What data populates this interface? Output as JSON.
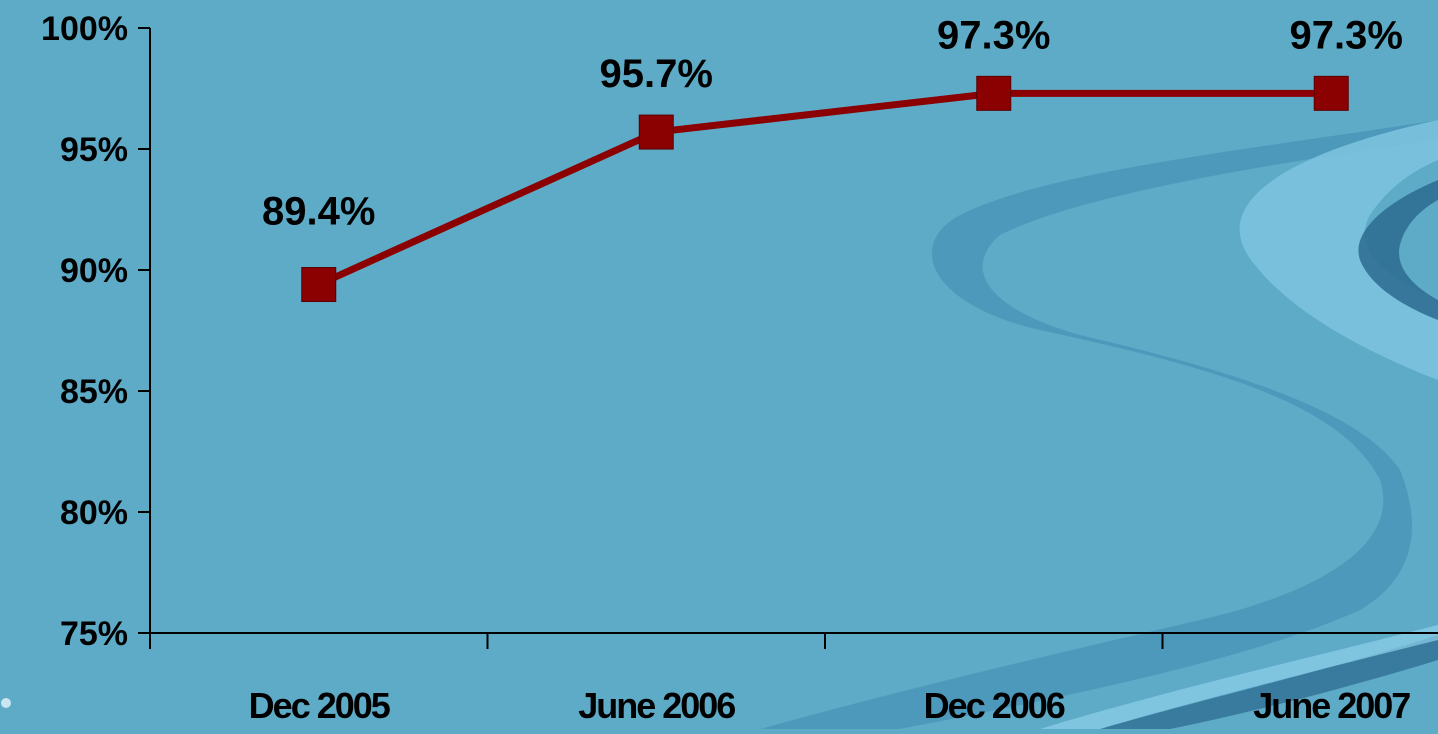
{
  "chart_data": {
    "type": "line",
    "categories": [
      "Dec 2005",
      "June 2006",
      "Dec 2006",
      "June 2007"
    ],
    "series": [
      {
        "values": [
          89.4,
          95.7,
          97.3,
          97.3
        ]
      }
    ],
    "data_labels": [
      "89.4%",
      "95.7%",
      "97.3%",
      "97.3%"
    ],
    "y_ticks": [
      "75%",
      "80%",
      "85%",
      "90%",
      "95%",
      "100%"
    ],
    "ylim": [
      75,
      100
    ],
    "grid": false,
    "legend": "none",
    "title": "",
    "xlabel": "",
    "ylabel": "",
    "colors": {
      "series": "#8b0000",
      "axis": "#000000",
      "background": "#5eabc8"
    }
  }
}
